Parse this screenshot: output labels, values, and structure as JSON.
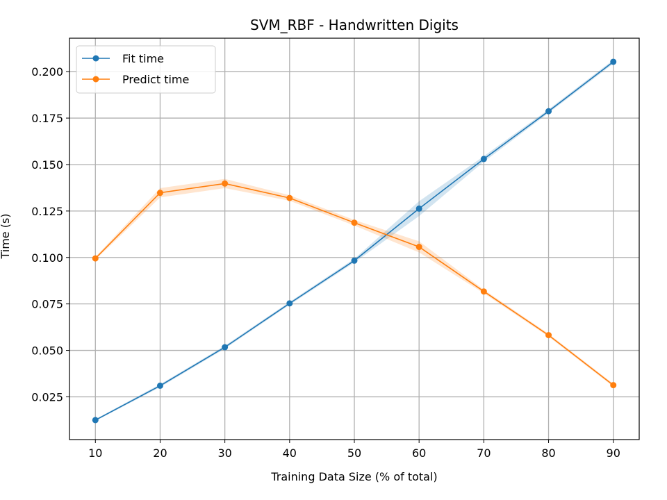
{
  "chart_data": {
    "type": "line",
    "title": "SVM_RBF - Handwritten Digits",
    "xlabel": "Training Data Size (% of total)",
    "ylabel": "Time (s)",
    "x": [
      10,
      20,
      30,
      40,
      50,
      60,
      70,
      80,
      90
    ],
    "xlim": [
      6,
      94
    ],
    "ylim": [
      0.002,
      0.218
    ],
    "xticks": [
      10,
      20,
      30,
      40,
      50,
      60,
      70,
      80,
      90
    ],
    "yticks": [
      0.025,
      0.05,
      0.075,
      0.1,
      0.125,
      0.15,
      0.175,
      0.2
    ],
    "ytick_labels": [
      "0.025",
      "0.050",
      "0.075",
      "0.100",
      "0.125",
      "0.150",
      "0.175",
      "0.200"
    ],
    "grid": true,
    "legend_position": "upper-left",
    "series": [
      {
        "name": "Fit time",
        "color": "#1f77b4",
        "values": [
          0.0125,
          0.031,
          0.0517,
          0.0753,
          0.0983,
          0.1263,
          0.153,
          0.1787,
          0.2053
        ],
        "band": [
          0.0005,
          0.0008,
          0.0008,
          0.0008,
          0.001,
          0.004,
          0.0015,
          0.001,
          0.001
        ]
      },
      {
        "name": "Predict time",
        "color": "#ff7f0e",
        "values": [
          0.0995,
          0.1348,
          0.1398,
          0.132,
          0.1187,
          0.1057,
          0.0817,
          0.0582,
          0.0313
        ],
        "band": [
          0.0008,
          0.0025,
          0.0025,
          0.0015,
          0.0015,
          0.003,
          0.001,
          0.0008,
          0.0008
        ]
      }
    ]
  }
}
